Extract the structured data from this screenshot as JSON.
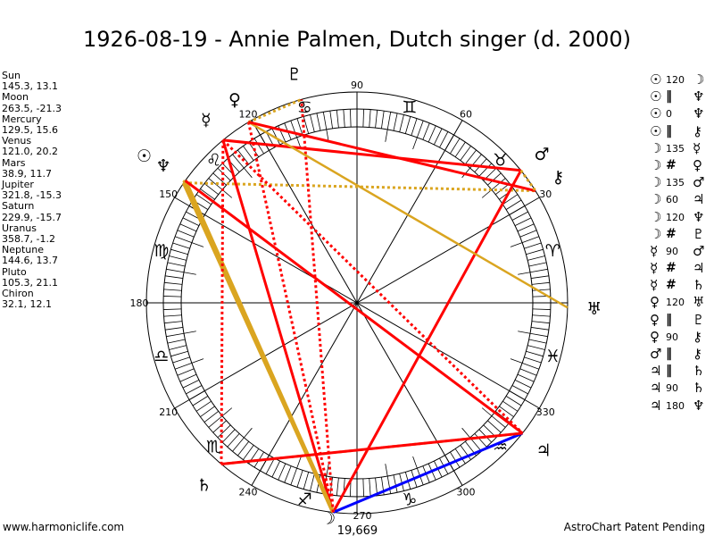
{
  "title": "1926-08-19 - Annie Palmen, Dutch singer (d. 2000)",
  "planets": [
    {
      "name": "Sun",
      "coords": "145.3, 13.1",
      "lon": 145.3,
      "glyph": "☉"
    },
    {
      "name": "Moon",
      "coords": "263.5, -21.3",
      "lon": 263.5,
      "glyph": "☽"
    },
    {
      "name": "Mercury",
      "coords": "129.5, 15.6",
      "lon": 129.5,
      "glyph": "☿"
    },
    {
      "name": "Venus",
      "coords": "121.0, 20.2",
      "lon": 121.0,
      "glyph": "♀"
    },
    {
      "name": "Mars",
      "coords": "38.9, 11.7",
      "lon": 38.9,
      "glyph": "♂"
    },
    {
      "name": "Jupiter",
      "coords": "321.8, -15.3",
      "lon": 321.8,
      "glyph": "♃"
    },
    {
      "name": "Saturn",
      "coords": "229.9, -15.7",
      "lon": 229.9,
      "glyph": "♄"
    },
    {
      "name": "Uranus",
      "coords": "358.7, -1.2",
      "lon": 358.7,
      "glyph": "♅"
    },
    {
      "name": "Neptune",
      "coords": "144.6, 13.7",
      "lon": 144.6,
      "glyph": "♆"
    },
    {
      "name": "Pluto",
      "coords": "105.3, 21.1",
      "lon": 105.3,
      "glyph": "♇"
    },
    {
      "name": "Chiron",
      "coords": "32.1, 12.1",
      "lon": 32.1,
      "glyph": "⚷"
    }
  ],
  "aspects": [
    {
      "p1": "☉",
      "type": "120",
      "p2": "☽",
      "a": 0,
      "b": 1
    },
    {
      "p1": "☉",
      "type": "‖",
      "p2": "♆",
      "a": 0,
      "b": 8
    },
    {
      "p1": "☉",
      "type": "0",
      "p2": "♆",
      "a": 0,
      "b": 8
    },
    {
      "p1": "☉",
      "type": "‖",
      "p2": "⚷",
      "a": 0,
      "b": 10
    },
    {
      "p1": "☽",
      "type": "135",
      "p2": "☿",
      "a": 1,
      "b": 2
    },
    {
      "p1": "☽",
      "type": "#",
      "p2": "♀",
      "a": 1,
      "b": 3
    },
    {
      "p1": "☽",
      "type": "135",
      "p2": "♂",
      "a": 1,
      "b": 4
    },
    {
      "p1": "☽",
      "type": "60",
      "p2": "♃",
      "a": 1,
      "b": 5
    },
    {
      "p1": "☽",
      "type": "120",
      "p2": "♆",
      "a": 1,
      "b": 8
    },
    {
      "p1": "☽",
      "type": "#",
      "p2": "♇",
      "a": 1,
      "b": 9
    },
    {
      "p1": "☿",
      "type": "90",
      "p2": "♂",
      "a": 2,
      "b": 4
    },
    {
      "p1": "☿",
      "type": "#",
      "p2": "♃",
      "a": 2,
      "b": 5
    },
    {
      "p1": "☿",
      "type": "#",
      "p2": "♄",
      "a": 2,
      "b": 6
    },
    {
      "p1": "♀",
      "type": "120",
      "p2": "♅",
      "a": 3,
      "b": 7
    },
    {
      "p1": "♀",
      "type": "‖",
      "p2": "♇",
      "a": 3,
      "b": 9
    },
    {
      "p1": "♀",
      "type": "90",
      "p2": "⚷",
      "a": 3,
      "b": 10
    },
    {
      "p1": "♂",
      "type": "‖",
      "p2": "⚷",
      "a": 4,
      "b": 10
    },
    {
      "p1": "♃",
      "type": "‖",
      "p2": "♄",
      "a": 5,
      "b": 6
    },
    {
      "p1": "♃",
      "type": "90",
      "p2": "♄",
      "a": 5,
      "b": 6
    },
    {
      "p1": "♃",
      "type": "180",
      "p2": "♆",
      "a": 5,
      "b": 8
    }
  ],
  "zodiac": [
    "♈",
    "♉",
    "♊",
    "♋",
    "♌",
    "♍",
    "♎",
    "♏",
    "♐",
    "♑",
    "♒",
    "♓"
  ],
  "degree_labels": [
    "30",
    "60",
    "90",
    "120",
    "150",
    "180",
    "210",
    "240",
    "270",
    "300",
    "330"
  ],
  "moon_annotation": "19,669",
  "colors": {
    "hard": "#ff0000",
    "trine": "#daa520",
    "sextile": "#0000ff"
  },
  "footer": {
    "left": "www.harmoniclife.com",
    "right": "AstroChart Patent Pending"
  }
}
